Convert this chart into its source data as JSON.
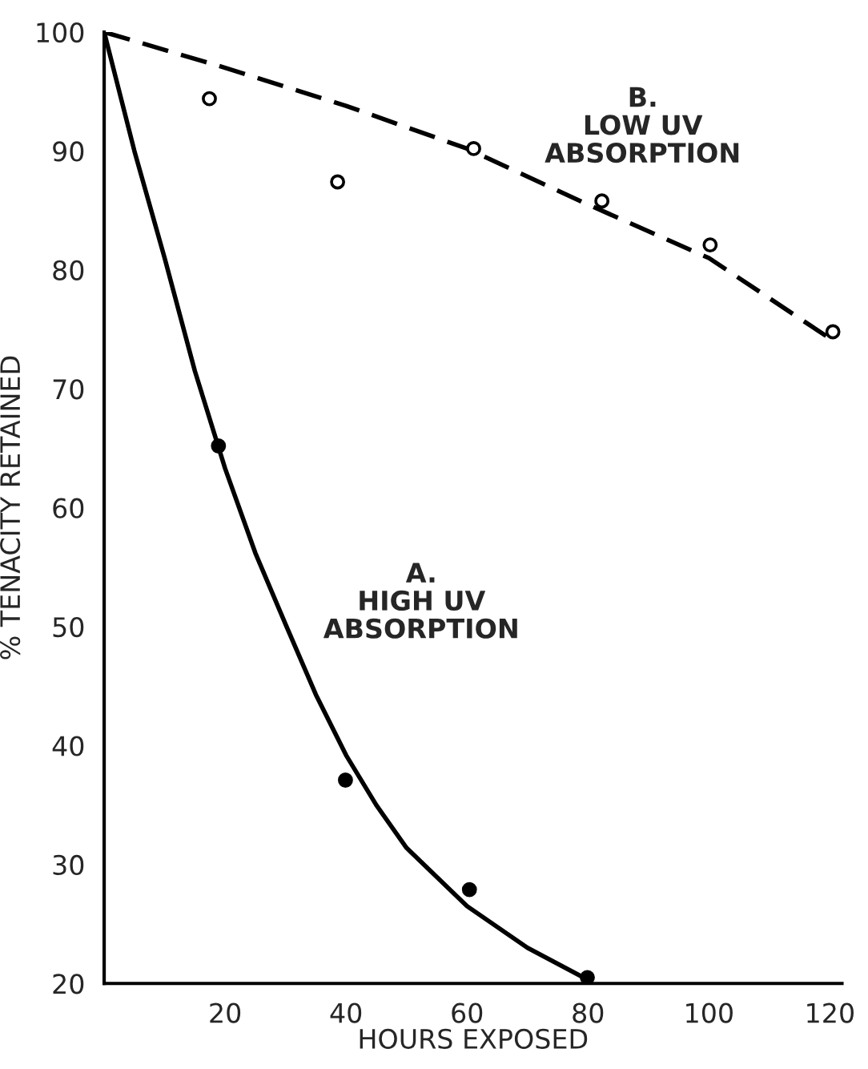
{
  "chart_data": {
    "type": "scatter",
    "xlabel": "HOURS EXPOSED",
    "ylabel": "% TENACITY RETAINED",
    "xlim": [
      0,
      122
    ],
    "xticks": [
      20,
      40,
      60,
      80,
      100,
      120
    ],
    "ylim": [
      20,
      100
    ],
    "yticks": [
      20,
      30,
      40,
      50,
      60,
      70,
      80,
      90,
      100
    ],
    "grid": false,
    "legend": false,
    "series": [
      {
        "type": "line",
        "line_style": "dashed",
        "marker": "none",
        "color": "#000000",
        "x": [
          0,
          20,
          40,
          60,
          80,
          100,
          120.7
        ],
        "values": [
          100,
          97.0,
          93.8,
          90.2,
          85.5,
          81.0,
          74.0
        ]
      },
      {
        "type": "line",
        "line_style": "solid",
        "marker": "none",
        "color": "#000000",
        "x": [
          0,
          5,
          10,
          15,
          20,
          25,
          30,
          35,
          40,
          45,
          50,
          60,
          70,
          80
        ],
        "values": [
          100,
          90,
          81,
          71.5,
          63.3,
          56.2,
          50.2,
          44.3,
          39.2,
          35,
          31.4,
          26.5,
          23,
          20.3
        ]
      },
      {
        "marker": "circle",
        "color": "#ffffff",
        "x": [
          17.4,
          38.6,
          61.1,
          82.3,
          100.2,
          120.5
        ],
        "values": [
          94.4,
          87.4,
          90.2,
          85.8,
          82.1,
          74.8
        ]
      },
      {
        "marker": "circle",
        "color": "#000000",
        "x": [
          18.9,
          39.9,
          60.4,
          79.9
        ],
        "values": [
          65.2,
          37.1,
          27.9,
          20.5
        ]
      }
    ],
    "annotations": [
      "B.\nLOW UV\nABSORPTION",
      "A.\nHIGH UV\nABSORPTION"
    ]
  }
}
